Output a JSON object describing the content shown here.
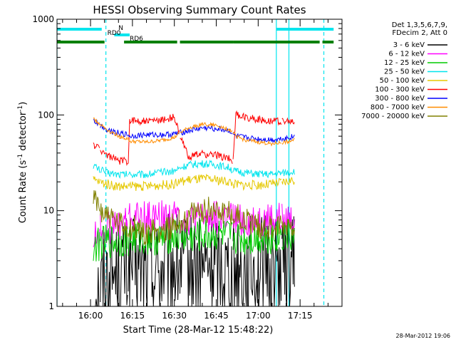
{
  "chart_data": {
    "type": "line",
    "title": "HESSI Observing Summary Count Rates",
    "xlabel": "Start Time (28-Mar-12 15:48:22)",
    "ylabel_main": "Count Rate (s",
    "ylabel_sup1": "-1",
    "ylabel_mid": " detector",
    "ylabel_sup2": "-1",
    "ylabel_end": ")",
    "yscale": "log",
    "ylim": [
      1,
      1000
    ],
    "xlim_minutes": [
      -12,
      90
    ],
    "x_ticks": [
      "16:00",
      "16:15",
      "16:30",
      "16:45",
      "17:00",
      "17:15"
    ],
    "x_tick_minutes": [
      0,
      15,
      30,
      45,
      60,
      75
    ],
    "y_ticks": [
      "1",
      "10",
      "100",
      "1000"
    ],
    "y_tick_values": [
      1,
      10,
      100,
      1000
    ],
    "grid": false,
    "legend_position": "right",
    "legend_header": [
      "Det 1,3,5,6,7,9,",
      "FDecim 2, Att 0"
    ],
    "timestamp": "28-Mar-2012 19:06",
    "segment_boundaries_minutes": [
      3.5,
      13.5,
      32,
      51,
      68.5,
      80.5
    ],
    "cyan_markers_minutes": [
      -12,
      5.5,
      66.5,
      71,
      83.5
    ],
    "flags": [
      {
        "label": "N",
        "color": "#00e5ee",
        "segments": [
          [
            -12,
            4
          ],
          [
            66.5,
            87
          ]
        ]
      },
      {
        "label": "RD0",
        "color": "#00e5ee",
        "segments": [
          [
            8.5,
            14
          ]
        ]
      },
      {
        "label": "RD6",
        "color": "#008000",
        "segments": [
          [
            -12,
            5
          ],
          [
            12,
            31
          ],
          [
            32,
            51
          ],
          [
            51,
            82
          ],
          [
            83,
            87
          ]
        ]
      }
    ],
    "series": [
      {
        "name": "3 - 6 keV",
        "color": "#000000",
        "data": [
          [
            1,
            1
          ],
          [
            3,
            1.5
          ],
          [
            6,
            2.2
          ],
          [
            10,
            2.3
          ],
          [
            15,
            2.6
          ],
          [
            20,
            2.4
          ],
          [
            25,
            2.5
          ],
          [
            30,
            2.7
          ],
          [
            35,
            2.5
          ],
          [
            40,
            2.5
          ],
          [
            45,
            2.8
          ],
          [
            50,
            2.6
          ],
          [
            55,
            2.5
          ],
          [
            60,
            2.5
          ],
          [
            65,
            2.6
          ],
          [
            70,
            2.7
          ],
          [
            73,
            2.6
          ]
        ]
      },
      {
        "name": "6 - 12 keV",
        "color": "#ff00ff",
        "data": [
          [
            1,
            5
          ],
          [
            3,
            6
          ],
          [
            6,
            6.5
          ],
          [
            10,
            7
          ],
          [
            15,
            8.5
          ],
          [
            20,
            8.3
          ],
          [
            25,
            8.5
          ],
          [
            30,
            8.8
          ],
          [
            35,
            8
          ],
          [
            40,
            8.3
          ],
          [
            45,
            8.5
          ],
          [
            50,
            8.3
          ],
          [
            55,
            7.5
          ],
          [
            60,
            7.8
          ],
          [
            65,
            8
          ],
          [
            70,
            8
          ],
          [
            73,
            7.8
          ]
        ]
      },
      {
        "name": "12 - 25 keV",
        "color": "#00cc00",
        "data": [
          [
            1,
            4
          ],
          [
            3,
            4.5
          ],
          [
            6,
            4.7
          ],
          [
            10,
            4.8
          ],
          [
            15,
            5
          ],
          [
            20,
            5.2
          ],
          [
            25,
            5
          ],
          [
            30,
            5.5
          ],
          [
            35,
            5.2
          ],
          [
            40,
            5.4
          ],
          [
            45,
            5.6
          ],
          [
            50,
            5.3
          ],
          [
            55,
            5
          ],
          [
            60,
            5.2
          ],
          [
            65,
            5.3
          ],
          [
            70,
            5.5
          ],
          [
            73,
            5.2
          ]
        ]
      },
      {
        "name": "25 - 50 keV",
        "color": "#00e5ee",
        "data": [
          [
            1,
            30
          ],
          [
            3,
            27
          ],
          [
            6,
            25
          ],
          [
            10,
            24
          ],
          [
            12,
            24
          ],
          [
            15,
            24
          ],
          [
            20,
            24
          ],
          [
            25,
            25
          ],
          [
            30,
            26
          ],
          [
            32,
            28
          ],
          [
            35,
            30
          ],
          [
            40,
            31
          ],
          [
            45,
            30
          ],
          [
            50,
            28
          ],
          [
            51,
            26
          ],
          [
            55,
            25
          ],
          [
            60,
            24
          ],
          [
            65,
            24
          ],
          [
            70,
            25
          ],
          [
            73,
            26
          ]
        ]
      },
      {
        "name": "50 - 100 keV",
        "color": "#e5c800",
        "data": [
          [
            1,
            21
          ],
          [
            3,
            20
          ],
          [
            6,
            19
          ],
          [
            10,
            18
          ],
          [
            12,
            18
          ],
          [
            15,
            18
          ],
          [
            20,
            18
          ],
          [
            25,
            18.5
          ],
          [
            30,
            19
          ],
          [
            32,
            20
          ],
          [
            35,
            21
          ],
          [
            40,
            21.5
          ],
          [
            45,
            21
          ],
          [
            50,
            20
          ],
          [
            51,
            19
          ],
          [
            55,
            18.5
          ],
          [
            60,
            18.5
          ],
          [
            65,
            19
          ],
          [
            70,
            20
          ],
          [
            73,
            21
          ]
        ]
      },
      {
        "name": "100 - 300 keV",
        "color": "#ff0000",
        "data": [
          [
            1,
            49
          ],
          [
            3,
            45
          ],
          [
            6,
            38
          ],
          [
            10,
            33
          ],
          [
            13.5,
            33
          ],
          [
            14,
            88
          ],
          [
            20,
            86
          ],
          [
            25,
            88
          ],
          [
            30,
            95
          ],
          [
            32,
            60
          ],
          [
            35,
            37
          ],
          [
            40,
            39
          ],
          [
            45,
            38
          ],
          [
            50,
            35
          ],
          [
            51,
            33
          ],
          [
            52,
            100
          ],
          [
            55,
            95
          ],
          [
            60,
            90
          ],
          [
            65,
            87
          ],
          [
            70,
            85
          ],
          [
            73,
            84
          ]
        ]
      },
      {
        "name": "300 - 800 keV",
        "color": "#0000ff",
        "data": [
          [
            1,
            88
          ],
          [
            3,
            80
          ],
          [
            6,
            70
          ],
          [
            10,
            65
          ],
          [
            13.5,
            62
          ],
          [
            14,
            60
          ],
          [
            20,
            62
          ],
          [
            25,
            62
          ],
          [
            30,
            63
          ],
          [
            32,
            65
          ],
          [
            35,
            68
          ],
          [
            40,
            73
          ],
          [
            45,
            72
          ],
          [
            50,
            68
          ],
          [
            51,
            62
          ],
          [
            52,
            60
          ],
          [
            55,
            58
          ],
          [
            60,
            56
          ],
          [
            65,
            55
          ],
          [
            70,
            57
          ],
          [
            73,
            60
          ]
        ]
      },
      {
        "name": "800 - 7000 keV",
        "color": "#ff8c00",
        "data": [
          [
            1,
            92
          ],
          [
            3,
            82
          ],
          [
            6,
            70
          ],
          [
            10,
            60
          ],
          [
            13.5,
            56
          ],
          [
            14,
            53
          ],
          [
            20,
            52
          ],
          [
            25,
            54
          ],
          [
            30,
            58
          ],
          [
            32,
            65
          ],
          [
            35,
            73
          ],
          [
            40,
            80
          ],
          [
            45,
            78
          ],
          [
            50,
            70
          ],
          [
            51,
            65
          ],
          [
            52,
            60
          ],
          [
            55,
            55
          ],
          [
            60,
            52
          ],
          [
            65,
            50
          ],
          [
            70,
            52
          ],
          [
            73,
            55
          ]
        ]
      },
      {
        "name": "7000 - 20000 keV",
        "color": "#808000",
        "data": [
          [
            1,
            13
          ],
          [
            3,
            11
          ],
          [
            6,
            9
          ],
          [
            10,
            7
          ],
          [
            15,
            6.5
          ],
          [
            20,
            6
          ],
          [
            25,
            6.2
          ],
          [
            30,
            7
          ],
          [
            35,
            8.5
          ],
          [
            40,
            10
          ],
          [
            45,
            10.5
          ],
          [
            50,
            9.5
          ],
          [
            55,
            8
          ],
          [
            60,
            7
          ],
          [
            65,
            6.5
          ],
          [
            70,
            7
          ],
          [
            73,
            7.5
          ]
        ]
      }
    ]
  }
}
